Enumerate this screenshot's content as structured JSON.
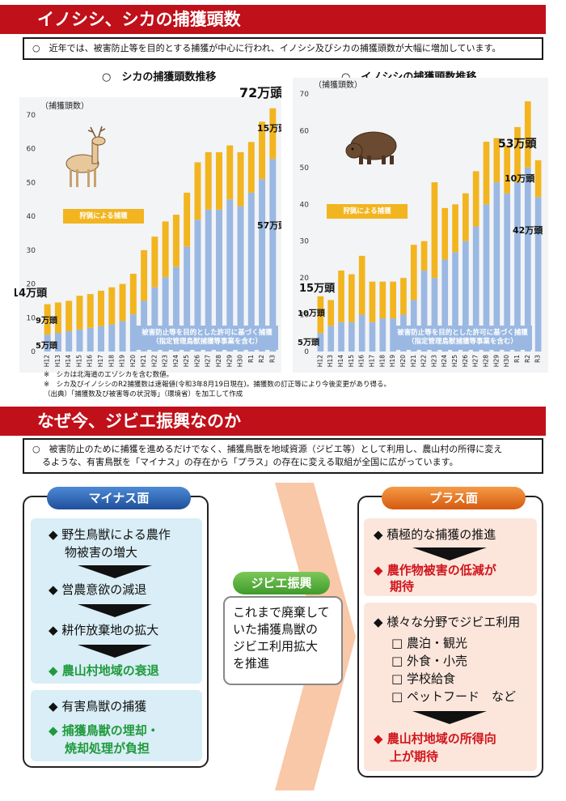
{
  "section1": {
    "title": "イノシシ、シカの捕獲頭数",
    "note": "○　近年では、被害防止等を目的とする捕獲が中心に行われ、イノシシ及びシカの捕獲頭数が大幅に増加しています。"
  },
  "deer_title": "○　シカの捕獲頭数推移",
  "boar_title": "○　イノシシの捕獲頭数推移",
  "chart_data": [
    {
      "type": "bar",
      "title": "○　シカの捕獲頭数推移",
      "ylabel": "（捕獲頭数）",
      "ylim": [
        0,
        70
      ],
      "yticks": [
        "0",
        "10",
        "20",
        "30",
        "40",
        "50",
        "60",
        "70"
      ],
      "categories": [
        "H12",
        "H13",
        "H14",
        "H15",
        "H16",
        "H17",
        "H18",
        "H19",
        "H20",
        "H21",
        "H22",
        "H23",
        "H24",
        "H25",
        "H26",
        "H27",
        "H28",
        "H29",
        "H30",
        "R1",
        "R2",
        "R3"
      ],
      "series": [
        {
          "name": "被害防止等を目的とした許可に基づく捕獲（指定管理鳥獣捕獲等事業を含む）",
          "color": "#9ab8e2",
          "values": [
            5,
            5.5,
            6,
            6.5,
            7,
            7.5,
            8,
            9,
            11,
            15,
            19,
            22,
            25,
            31,
            39,
            42,
            42,
            45,
            43,
            47,
            51,
            57
          ]
        },
        {
          "name": "狩猟による捕獲",
          "color": "#f2b51f",
          "values": [
            9,
            9,
            9,
            10,
            10,
            10.5,
            11,
            11,
            12,
            15,
            15,
            16.5,
            15.5,
            16,
            17,
            17,
            17,
            16,
            16,
            15,
            17,
            15
          ]
        }
      ],
      "annotations": [
        "72万頭",
        "15万頭",
        "57万頭",
        "14万頭",
        "9万頭",
        "5万頭"
      ],
      "inner_labels": {
        "hunting": "狩猟による捕獲",
        "control_1": "被害防止等を目的とした許可に基づく捕獲",
        "control_2": "（指定管理鳥獣捕獲等事業を含む）"
      }
    },
    {
      "type": "bar",
      "title": "○　イノシシの捕獲頭数推移",
      "ylabel": "（捕獲頭数）",
      "ylim": [
        0,
        70
      ],
      "yticks": [
        "0",
        "10",
        "20",
        "30",
        "40",
        "50",
        "60",
        "70"
      ],
      "categories": [
        "H12",
        "H13",
        "H14",
        "H15",
        "H16",
        "H17",
        "H18",
        "H19",
        "H20",
        "H21",
        "H22",
        "H23",
        "H24",
        "H25",
        "H26",
        "H27",
        "H28",
        "H29",
        "H30",
        "R1",
        "R2",
        "R3"
      ],
      "series": [
        {
          "name": "被害防止等を目的とした許可に基づく捕獲（指定管理鳥獣捕獲等事業を含む）",
          "color": "#9ab8e2",
          "values": [
            5,
            7,
            8,
            8,
            10,
            8,
            9,
            9,
            10,
            14,
            22,
            20,
            25,
            27,
            30,
            34,
            40,
            46,
            43,
            46,
            50,
            42
          ]
        },
        {
          "name": "狩猟による捕獲",
          "color": "#f2b51f",
          "values": [
            10,
            7,
            14,
            13,
            16,
            11,
            10,
            10,
            10,
            15,
            8,
            26,
            14,
            13,
            13,
            15,
            17,
            12,
            13,
            15,
            18,
            10
          ]
        }
      ],
      "annotations": [
        "53万頭",
        "10万頭",
        "42万頭",
        "15万頭",
        "10万頭",
        "5万頭"
      ],
      "inner_labels": {
        "hunting": "狩猟による捕獲",
        "control_1": "被害防止等を目的とした許可に基づく捕獲",
        "control_2": "（指定管理鳥獣捕獲等事業を含む）"
      }
    }
  ],
  "footnotes": [
    "※　シカは北海道のエゾシカを含む数値。",
    "※　シカ及びイノシシのR2捕獲数は速報値(令和3年8月19日現在)。捕獲数の訂正等により今後変更があり得る。",
    "（出典）「捕獲数及び被害等の状況等」（環境省）を加工して作成"
  ],
  "section2": {
    "title": "なぜ今、ジビエ振興なのか",
    "note_1": "○　被害防止のために捕獲を進めるだけでなく、捕獲鳥獣を地域資源（ジビエ等）として利用し、農山村の所得に変え",
    "note_2": "るような、有害鳥獣を「マイナス」の存在から「プラス」の存在に変える取組が全国に広がっています。"
  },
  "minus": {
    "label": "マイナス面",
    "b1_1": "◆ 野生鳥獣による農作",
    "b1_2": "物被害の増大",
    "b1_3": "◆ 営農意欲の減退",
    "b1_4": "◆ 耕作放棄地の拡大",
    "b1_5": "◆ 農山村地域の衰退",
    "b2_1": "◆ 有害鳥獣の捕獲",
    "b2_2": "◆ 捕獲鳥獣の埋却・",
    "b2_3": "焼却処理が負担"
  },
  "middle": {
    "label": "ジビエ振興",
    "text_1": "これまで廃棄して",
    "text_2": "いた捕獲鳥獣の",
    "text_3": "ジビエ利用拡大",
    "text_4": "を推進"
  },
  "plus": {
    "label": "プラス面",
    "b1_1": "◆ 積極的な捕獲の推進",
    "b1_2": "◆ 農作物被害の低減が",
    "b1_3": "期待",
    "b2_1": "◆ 様々な分野でジビエ利用",
    "sub": [
      "□ 農泊・観光",
      "□ 外食・小売",
      "□ 学校給食",
      "□ ペットフード　など"
    ],
    "b2_2": "◆ 農山村地域の所得向",
    "b2_3": "上が期待"
  },
  "colors": {
    "banner": "#c0101a",
    "control_bar": "#9ab8e2",
    "hunting_bar": "#f2b51f",
    "minus_bg": "#d9eef6",
    "plus_bg": "#fce6dc",
    "arrow": "#f9c8a8",
    "pill_blue": "#2f66b3",
    "pill_orange": "#e9731c",
    "pill_green": "#5cb53b"
  }
}
